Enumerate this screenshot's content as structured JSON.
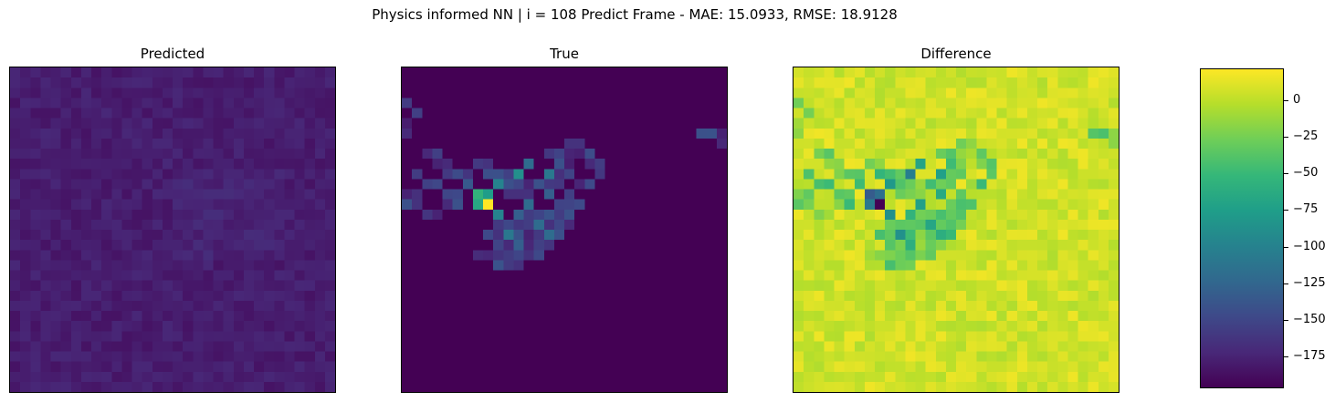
{
  "suptitle": "Physics informed NN | i = 108 Predict Frame - MAE: 15.0933, RMSE: 18.9128",
  "colors": {
    "viridis": [
      "#440154",
      "#482878",
      "#3e4989",
      "#31688e",
      "#26828e",
      "#1f9e89",
      "#35b779",
      "#6ece58",
      "#b5de2b",
      "#fde725"
    ]
  },
  "chart_data": [
    {
      "type": "heatmap",
      "title": "Predicted",
      "grid": [
        32,
        32
      ],
      "description_values": "near-uniform low values (approx. -175 on shared scale)"
    },
    {
      "type": "heatmap",
      "title": "True",
      "grid": [
        32,
        32
      ],
      "hotspots": [
        {
          "row": 13,
          "col": 8,
          "value": 1.0
        },
        {
          "row": 12,
          "col": 7,
          "value": 0.65
        },
        {
          "row": 13,
          "col": 7,
          "value": 0.6
        },
        {
          "row": 12,
          "col": 8,
          "value": 0.55
        },
        {
          "row": 10,
          "col": 11,
          "value": 0.5
        },
        {
          "row": 11,
          "col": 9,
          "value": 0.45
        },
        {
          "row": 14,
          "col": 9,
          "value": 0.45
        },
        {
          "row": 16,
          "col": 10,
          "value": 0.4
        },
        {
          "row": 10,
          "col": 14,
          "value": 0.4
        },
        {
          "row": 9,
          "col": 12,
          "value": 0.35
        },
        {
          "row": 13,
          "col": 12,
          "value": 0.35
        },
        {
          "row": 15,
          "col": 13,
          "value": 0.35
        },
        {
          "row": 16,
          "col": 14,
          "value": 0.35
        },
        {
          "row": 12,
          "col": 14,
          "value": 0.3
        },
        {
          "row": 17,
          "col": 11,
          "value": 0.3
        },
        {
          "row": 14,
          "col": 11,
          "value": 0.3
        },
        {
          "row": 11,
          "col": 6,
          "value": 0.28
        },
        {
          "row": 13,
          "col": 5,
          "value": 0.25
        },
        {
          "row": 9,
          "col": 15,
          "value": 0.25
        },
        {
          "row": 11,
          "col": 13,
          "value": 0.25
        }
      ]
    },
    {
      "type": "heatmap",
      "title": "Difference",
      "grid": [
        32,
        32
      ]
    },
    {
      "type": "colorbar",
      "range": [
        -197,
        22
      ],
      "ticks": [
        0,
        -25,
        -50,
        -75,
        -100,
        -125,
        -150,
        -175
      ],
      "tick_labels": [
        "0",
        "−25",
        "−50",
        "−75",
        "−100",
        "−125",
        "−150",
        "−175"
      ]
    }
  ]
}
